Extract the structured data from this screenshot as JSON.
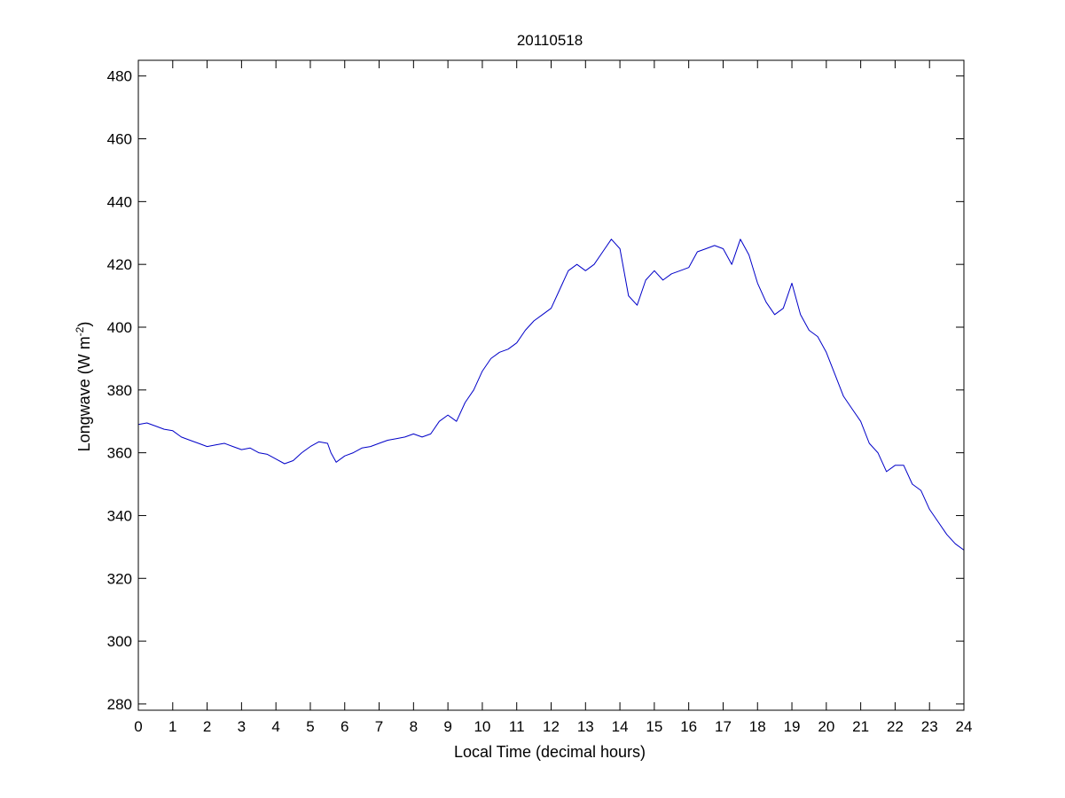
{
  "chart_data": {
    "type": "line",
    "title": "20110518",
    "xlabel": "Local Time (decimal hours)",
    "ylabel_main": "Longwave (W m",
    "ylabel_exp": "-2",
    "ylabel_close": ")",
    "xlim": [
      0,
      24
    ],
    "ylim": [
      278,
      485
    ],
    "xticks": [
      0,
      1,
      2,
      3,
      4,
      5,
      6,
      7,
      8,
      9,
      10,
      11,
      12,
      13,
      14,
      15,
      16,
      17,
      18,
      19,
      20,
      21,
      22,
      23,
      24
    ],
    "yticks": [
      280,
      300,
      320,
      340,
      360,
      380,
      400,
      420,
      440,
      460,
      480
    ],
    "grid": false,
    "line_color": "#0000c8",
    "series": [
      {
        "name": "",
        "x": [
          0,
          0.25,
          0.5,
          0.75,
          1,
          1.25,
          1.5,
          1.75,
          2,
          2.25,
          2.5,
          2.75,
          3,
          3.25,
          3.5,
          3.75,
          4,
          4.25,
          4.5,
          4.75,
          5,
          5.25,
          5.5,
          5.6,
          5.75,
          6,
          6.25,
          6.5,
          6.75,
          7,
          7.25,
          7.5,
          7.75,
          8,
          8.25,
          8.5,
          8.75,
          9,
          9.25,
          9.5,
          9.75,
          10,
          10.25,
          10.5,
          10.75,
          11,
          11.25,
          11.5,
          11.75,
          12,
          12.25,
          12.5,
          12.75,
          13,
          13.25,
          13.5,
          13.75,
          14,
          14.25,
          14.5,
          14.75,
          15,
          15.25,
          15.5,
          15.75,
          16,
          16.25,
          16.5,
          16.75,
          17,
          17.25,
          17.5,
          17.75,
          18,
          18.25,
          18.5,
          18.75,
          19,
          19.25,
          19.5,
          19.75,
          20,
          20.25,
          20.5,
          20.75,
          21,
          21.25,
          21.5,
          21.75,
          22,
          22.25,
          22.5,
          22.75,
          23,
          23.25,
          23.5,
          23.75,
          24
        ],
        "y": [
          369,
          369.5,
          368.5,
          367.5,
          367,
          365,
          364,
          363,
          362,
          362.5,
          363,
          362,
          361,
          361.5,
          360,
          359.5,
          358,
          356.5,
          357.5,
          360,
          362,
          363.5,
          363,
          360,
          357,
          359,
          360,
          361.5,
          362,
          363,
          364,
          364.5,
          365,
          366,
          365,
          366,
          370,
          372,
          370,
          376,
          380,
          386,
          390,
          392,
          393,
          395,
          399,
          402,
          404,
          406,
          412,
          418,
          420,
          418,
          420,
          424,
          428,
          425,
          410,
          407,
          415,
          418,
          415,
          417,
          418,
          419,
          424,
          425,
          426,
          425,
          420,
          428,
          423,
          414,
          408,
          404,
          406,
          414,
          404,
          399,
          397,
          392,
          385,
          378,
          374,
          370,
          363,
          360,
          354,
          356,
          356,
          350,
          348,
          342,
          338,
          334,
          331,
          329
        ]
      }
    ]
  }
}
